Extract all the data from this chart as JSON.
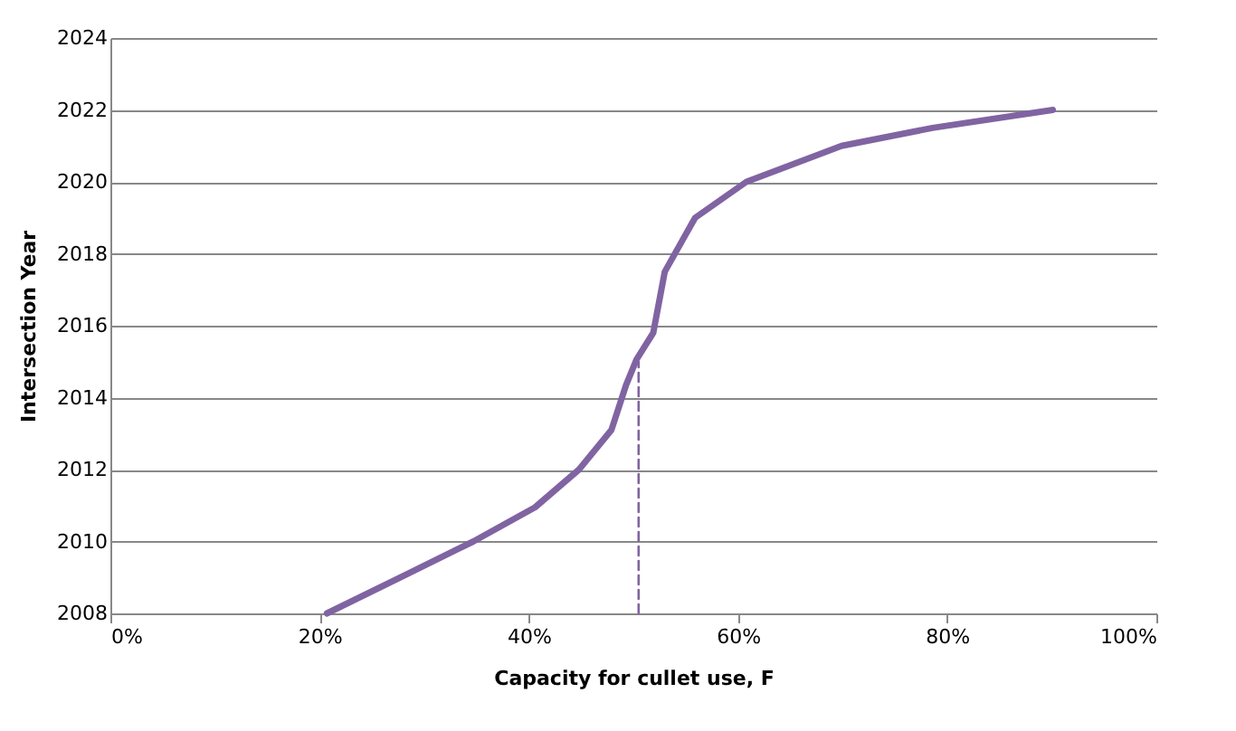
{
  "chart_data": {
    "type": "line",
    "xlabel": "Capacity for cullet use, F",
    "ylabel": "Intersection Year",
    "series": [
      {
        "color": "#8064a2",
        "x": [
          20.7,
          28.4,
          34.7,
          40.6,
          44.8,
          47.9,
          49.3,
          50.3,
          51.9,
          53.0,
          55.9,
          60.8,
          69.9,
          78.6,
          90.1
        ],
        "values": [
          2008,
          2009.1,
          2010,
          2010.95,
          2012,
          2013.1,
          2014.35,
          2015.06,
          2015.8,
          2017.5,
          2019.0,
          2020,
          2021,
          2021.5,
          2022
        ]
      },
      {
        "color": "#8064a2",
        "line_style": "dashed",
        "x": [
          50.5,
          50.5
        ],
        "values": [
          2008,
          2015
        ]
      }
    ],
    "xlim": [
      0,
      100
    ],
    "xticks": [
      {
        "value": 0,
        "label": "0%"
      },
      {
        "value": 20,
        "label": "20%"
      },
      {
        "value": 40,
        "label": "40%"
      },
      {
        "value": 60,
        "label": "60%"
      },
      {
        "value": 80,
        "label": "80%"
      },
      {
        "value": 100,
        "label": "100%"
      }
    ],
    "ylim": [
      2008,
      2024
    ],
    "yticks": [
      2008,
      2010,
      2012,
      2014,
      2016,
      2018,
      2020,
      2022,
      2024
    ],
    "grid": "y"
  }
}
